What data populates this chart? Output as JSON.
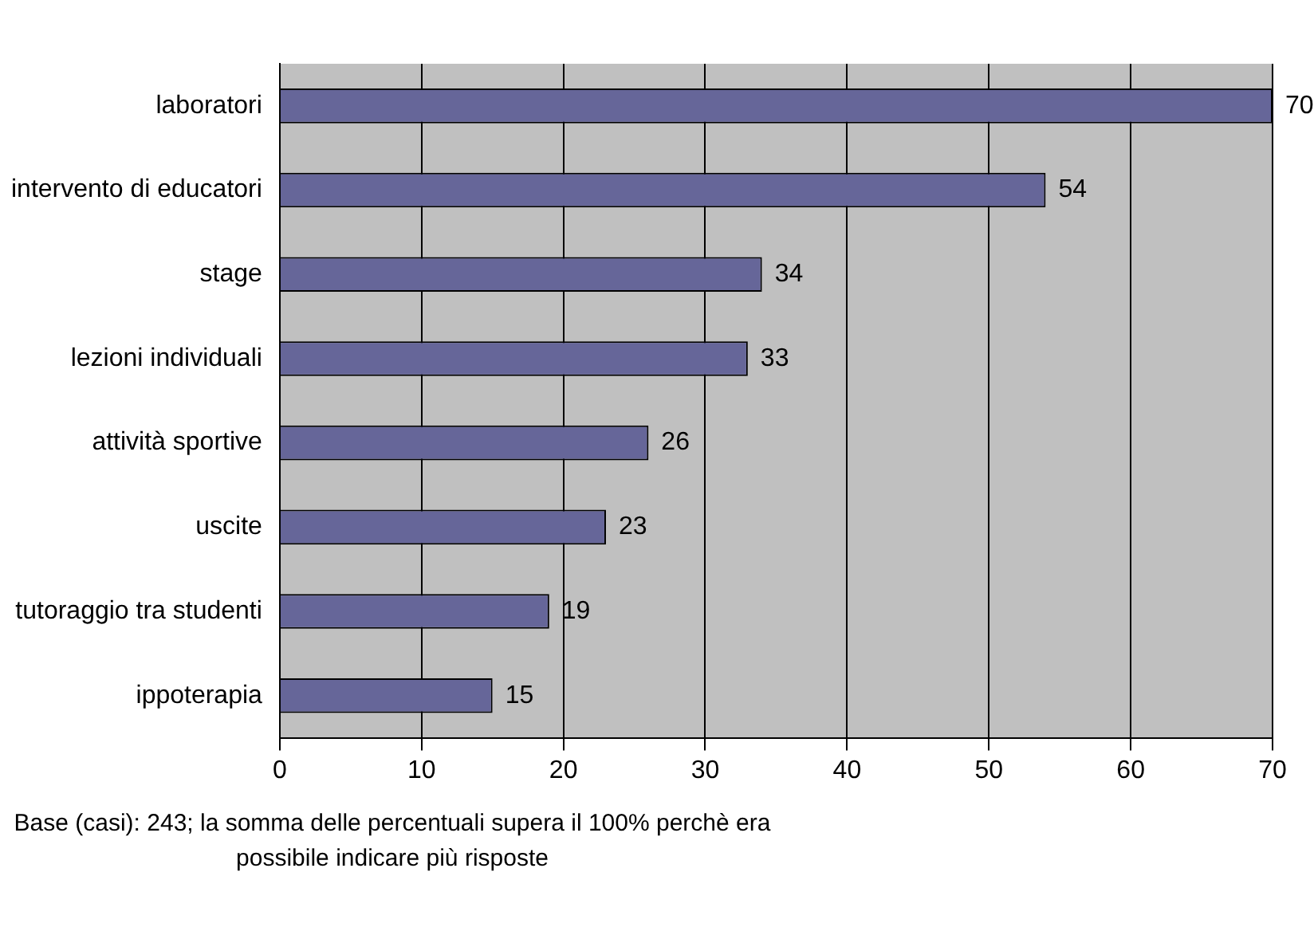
{
  "chart_data": {
    "type": "bar",
    "orientation": "horizontal",
    "categories": [
      "laboratori",
      "intervento di educatori",
      "stage",
      "lezioni individuali",
      "attività sportive",
      "uscite",
      "tutoraggio tra studenti",
      "ippoterapia"
    ],
    "values": [
      70,
      54,
      34,
      33,
      26,
      23,
      19,
      15
    ],
    "color": "#666699",
    "xlim": [
      0,
      70
    ],
    "xticks": [
      0,
      10,
      20,
      30,
      40,
      50,
      60,
      70
    ],
    "grid": "x",
    "legend": false,
    "data_labels": true,
    "annotations": [
      "Base (casi): 243; la somma delle percentuali supera il 100% perchè era possibile indicare più risposte"
    ]
  }
}
